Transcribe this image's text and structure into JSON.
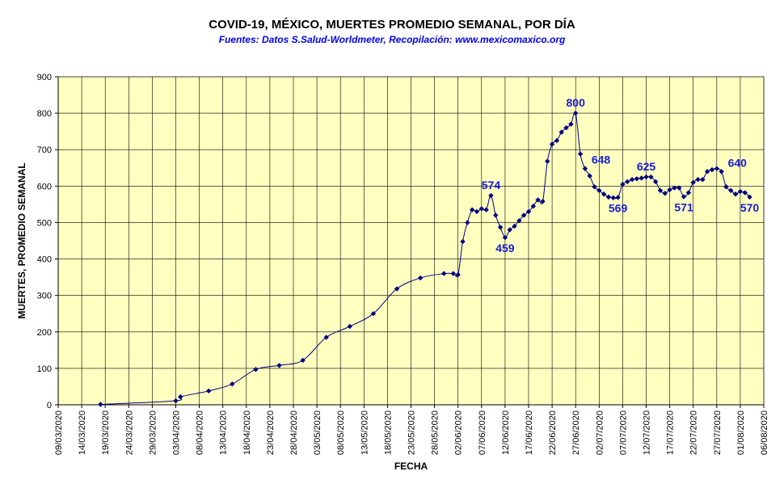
{
  "chart_data": {
    "type": "line",
    "title": "COVID-19, MÉXICO, MUERTES PROMEDIO SEMANAL, POR DÍA",
    "subtitle": "Fuentes:  Datos S.Salud-Worldmeter,  Recopilación: www.mexicomaxico.org",
    "xlabel": "FECHA",
    "ylabel": "MUERTES, PROMEDIO SEMANAL",
    "ylim": [
      0,
      900
    ],
    "yticks": [
      "0",
      "100",
      "200",
      "300",
      "400",
      "500",
      "600",
      "700",
      "800",
      "900"
    ],
    "xlim": [
      "09/03/2020",
      "06/08/2020"
    ],
    "xticks": [
      "09/03/2020",
      "14/03/2020",
      "19/03/2020",
      "24/03/2020",
      "29/03/2020",
      "03/04/2020",
      "08/04/2020",
      "13/04/2020",
      "18/04/2020",
      "23/04/2020",
      "28/04/2020",
      "03/05/2020",
      "08/05/2020",
      "13/05/2020",
      "18/05/2020",
      "23/05/2020",
      "28/05/2020",
      "02/06/2020",
      "07/06/2020",
      "12/06/2020",
      "17/06/2020",
      "22/06/2020",
      "27/06/2020",
      "02/07/2020",
      "07/07/2020",
      "12/07/2020",
      "17/07/2020",
      "22/07/2020",
      "27/07/2020",
      "01/08/2020",
      "06/08/2020"
    ],
    "grid": true,
    "colors": {
      "plot_background": "#ffffc0",
      "line": "#000080",
      "marker": "#000080",
      "annotation": "#1a1adb"
    },
    "series": [
      {
        "points": [
          [
            "18/03/2020",
            1
          ],
          [
            "03/04/2020",
            11
          ],
          [
            "04/04/2020",
            22
          ],
          [
            "10/04/2020",
            38
          ],
          [
            "15/04/2020",
            57
          ],
          [
            "20/04/2020",
            97
          ],
          [
            "25/04/2020",
            108
          ],
          [
            "30/04/2020",
            122
          ],
          [
            "05/05/2020",
            185
          ],
          [
            "10/05/2020",
            215
          ],
          [
            "15/05/2020",
            250
          ],
          [
            "20/05/2020",
            318
          ],
          [
            "25/05/2020",
            348
          ],
          [
            "30/05/2020",
            360
          ],
          [
            "01/06/2020",
            360
          ],
          [
            "02/06/2020",
            357
          ],
          [
            "03/06/2020",
            448
          ],
          [
            "04/06/2020",
            500
          ],
          [
            "05/06/2020",
            535
          ],
          [
            "06/06/2020",
            530
          ],
          [
            "07/06/2020",
            538
          ],
          [
            "08/06/2020",
            535
          ],
          [
            "09/06/2020",
            574
          ],
          [
            "10/06/2020",
            520
          ],
          [
            "11/06/2020",
            487
          ],
          [
            "12/06/2020",
            459
          ],
          [
            "13/06/2020",
            480
          ],
          [
            "14/06/2020",
            490
          ],
          [
            "15/06/2020",
            505
          ],
          [
            "16/06/2020",
            520
          ],
          [
            "17/06/2020",
            530
          ],
          [
            "18/06/2020",
            545
          ],
          [
            "19/06/2020",
            562
          ],
          [
            "20/06/2020",
            558
          ],
          [
            "21/06/2020",
            668
          ],
          [
            "22/06/2020",
            715
          ],
          [
            "23/06/2020",
            725
          ],
          [
            "24/06/2020",
            748
          ],
          [
            "25/06/2020",
            760
          ],
          [
            "26/06/2020",
            770
          ],
          [
            "27/06/2020",
            800
          ],
          [
            "28/06/2020",
            688
          ],
          [
            "29/06/2020",
            648
          ],
          [
            "30/06/2020",
            628
          ],
          [
            "01/07/2020",
            598
          ],
          [
            "02/07/2020",
            588
          ],
          [
            "03/07/2020",
            578
          ],
          [
            "04/07/2020",
            570
          ],
          [
            "05/07/2020",
            568
          ],
          [
            "06/07/2020",
            569
          ],
          [
            "07/07/2020",
            605
          ],
          [
            "08/07/2020",
            612
          ],
          [
            "09/07/2020",
            618
          ],
          [
            "10/07/2020",
            620
          ],
          [
            "11/07/2020",
            622
          ],
          [
            "12/07/2020",
            625
          ],
          [
            "13/07/2020",
            625
          ],
          [
            "14/07/2020",
            612
          ],
          [
            "15/07/2020",
            588
          ],
          [
            "16/07/2020",
            580
          ],
          [
            "17/07/2020",
            590
          ],
          [
            "18/07/2020",
            595
          ],
          [
            "19/07/2020",
            595
          ],
          [
            "20/07/2020",
            571
          ],
          [
            "21/07/2020",
            582
          ],
          [
            "22/07/2020",
            610
          ],
          [
            "23/07/2020",
            618
          ],
          [
            "24/07/2020",
            618
          ],
          [
            "25/07/2020",
            640
          ],
          [
            "26/07/2020",
            645
          ],
          [
            "27/07/2020",
            648
          ],
          [
            "28/07/2020",
            640
          ],
          [
            "29/07/2020",
            598
          ],
          [
            "30/07/2020",
            588
          ],
          [
            "31/07/2020",
            578
          ],
          [
            "01/08/2020",
            585
          ],
          [
            "02/08/2020",
            582
          ],
          [
            "03/08/2020",
            570
          ]
        ]
      }
    ],
    "annotations": [
      {
        "x": "09/06/2020",
        "y": 574,
        "label": "574",
        "position": "above"
      },
      {
        "x": "12/06/2020",
        "y": 459,
        "label": "459",
        "position": "below"
      },
      {
        "x": "27/06/2020",
        "y": 800,
        "label": "800",
        "position": "above"
      },
      {
        "x": "29/06/2020",
        "y": 648,
        "label": "648",
        "position": "right"
      },
      {
        "x": "06/07/2020",
        "y": 569,
        "label": "569",
        "position": "below"
      },
      {
        "x": "12/07/2020",
        "y": 625,
        "label": "625",
        "position": "above"
      },
      {
        "x": "20/07/2020",
        "y": 571,
        "label": "571",
        "position": "below"
      },
      {
        "x": "28/07/2020",
        "y": 640,
        "label": "640",
        "position": "right"
      },
      {
        "x": "03/08/2020",
        "y": 570,
        "label": "570",
        "position": "below"
      }
    ]
  }
}
